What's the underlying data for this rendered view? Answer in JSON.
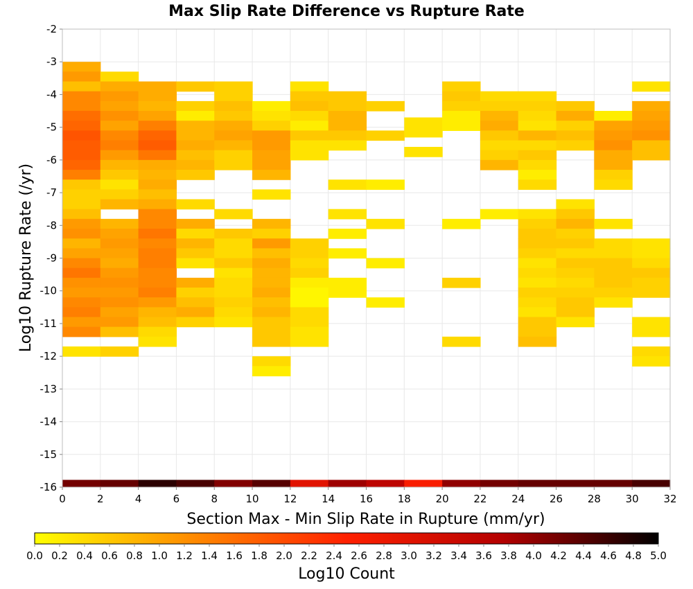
{
  "chart_data": {
    "type": "heatmap",
    "title": "Max Slip Rate Difference vs Rupture Rate",
    "xlabel": "Section Max - Min Slip Rate in Rupture (mm/yr)",
    "ylabel": "Log10 Rupture Rate (/yr)",
    "xlim": [
      0,
      32
    ],
    "ylim": [
      -16,
      -2
    ],
    "x_ticks": [
      0,
      2,
      4,
      6,
      8,
      10,
      12,
      14,
      16,
      18,
      20,
      22,
      24,
      26,
      28,
      30,
      32
    ],
    "y_ticks": [
      -16,
      -15,
      -14,
      -13,
      -12,
      -11,
      -10,
      -9,
      -8,
      -7,
      -6,
      -5,
      -4,
      -3,
      -2
    ],
    "x_bin_width": 2,
    "y_bin_height": 0.3,
    "grid": true,
    "colorbar": {
      "label": "Log10 Count",
      "min": 0.0,
      "max": 5.0,
      "ticks": [
        "0.0",
        "0.2",
        "0.4",
        "0.6",
        "0.8",
        "1.0",
        "1.2",
        "1.4",
        "1.6",
        "1.8",
        "2.0",
        "2.2",
        "2.4",
        "2.6",
        "2.8",
        "3.0",
        "3.2",
        "3.4",
        "3.6",
        "3.8",
        "4.0",
        "4.2",
        "4.4",
        "4.6",
        "4.8",
        "5.0"
      ],
      "colors": [
        "#ffff00",
        "#ff8c00",
        "#ff2000",
        "#b40000",
        "#000000"
      ]
    },
    "columns": [
      {
        "x_start": 0,
        "y_top": -3.0,
        "values": [
          0.9,
          1.1,
          0.7,
          1.3,
          1.3,
          1.6,
          1.7,
          1.9,
          1.8,
          1.8,
          1.7,
          1.4,
          0.6,
          0.5,
          0.5,
          0.7,
          1.1,
          1.2,
          0.8,
          1.0,
          1.3,
          1.5,
          1.2,
          1.1,
          1.3,
          1.4,
          1.1,
          1.3,
          null,
          0.3
        ],
        "baseline": 4.2
      },
      {
        "x_start": 2,
        "y_top": -3.3,
        "values": [
          0.4,
          0.9,
          1.1,
          1.0,
          1.2,
          1.0,
          1.3,
          1.4,
          1.1,
          0.8,
          0.6,
          0.3,
          0.5,
          0.8,
          null,
          0.8,
          1.0,
          1.1,
          1.0,
          0.9,
          1.1,
          1.2,
          1.1,
          1.2,
          1.0,
          1.1,
          0.7,
          null,
          0.5
        ],
        "baseline": 4.3
      },
      {
        "x_start": 4,
        "y_top": -3.6,
        "values": [
          0.9,
          0.9,
          0.8,
          1.0,
          1.4,
          1.7,
          1.8,
          1.5,
          0.9,
          0.8,
          0.9,
          0.7,
          0.9,
          1.3,
          1.3,
          1.5,
          1.3,
          1.4,
          1.4,
          1.3,
          1.3,
          1.4,
          1.1,
          0.8,
          0.7,
          0.4,
          0.3
        ],
        "baseline": 4.7
      },
      {
        "x_start": 6,
        "y_top": -3.6,
        "values": [
          0.6,
          null,
          0.5,
          0.2,
          0.8,
          0.8,
          0.9,
          0.7,
          0.8,
          0.6,
          null,
          null,
          0.4,
          null,
          0.9,
          0.4,
          0.8,
          0.6,
          0.3,
          null,
          0.9,
          0.5,
          0.7,
          0.9,
          0.5
        ],
        "baseline": 4.5
      },
      {
        "x_start": 8,
        "y_top": -3.6,
        "values": [
          0.5,
          0.5,
          0.7,
          0.6,
          0.9,
          1.0,
          0.8,
          0.5,
          0.5,
          null,
          null,
          null,
          null,
          0.4,
          null,
          0.6,
          0.4,
          0.4,
          0.6,
          0.3,
          0.4,
          0.4,
          0.5,
          0.4,
          0.3
        ],
        "baseline": 4.1
      },
      {
        "x_start": 10,
        "y_top": -4.2,
        "values": [
          0.2,
          0.3,
          0.5,
          1.1,
          1.1,
          1.0,
          1.0,
          0.8,
          null,
          0.3,
          null,
          null,
          0.8,
          0.5,
          1.1,
          0.7,
          0.9,
          0.8,
          0.8,
          0.9,
          0.7,
          0.8,
          0.6,
          0.6,
          0.6,
          null,
          0.4,
          0.2
        ],
        "baseline": 4.4
      },
      {
        "x_start": 12,
        "y_top": -3.6,
        "values": [
          0.3,
          0.6,
          0.7,
          0.4,
          0.2,
          0.6,
          0.3,
          0.3,
          null,
          null,
          null,
          null,
          null,
          null,
          null,
          null,
          0.5,
          0.5,
          0.4,
          0.5,
          0.2,
          0.1,
          0.1,
          0.4,
          0.4,
          0.3,
          0.3
        ],
        "baseline": 3.0
      },
      {
        "x_start": 14,
        "y_top": -3.9,
        "values": [
          0.6,
          0.6,
          0.8,
          0.8,
          0.6,
          0.3,
          null,
          null,
          null,
          0.3,
          null,
          null,
          0.3,
          null,
          0.2,
          null,
          0.2,
          null,
          null,
          0.2,
          0.2
        ],
        "baseline": 3.9
      },
      {
        "x_start": 16,
        "y_top": -4.2,
        "values": [
          0.5,
          null,
          null,
          0.5,
          null,
          null,
          null,
          null,
          0.2,
          null,
          null,
          null,
          0.3,
          null,
          null,
          null,
          0.2,
          null,
          null,
          null,
          0.2
        ],
        "baseline": 3.6
      },
      {
        "x_start": 18,
        "y_top": -4.7,
        "values": [
          0.3,
          0.3,
          null,
          0.3
        ],
        "baseline": 2.6
      },
      {
        "x_start": 20,
        "y_top": -3.6,
        "values": [
          0.5,
          0.6,
          0.5,
          0.2,
          0.2,
          null,
          null,
          null,
          null,
          null,
          null,
          null,
          null,
          null,
          0.2,
          null,
          null,
          null,
          null,
          null,
          0.5,
          null,
          null,
          null,
          null,
          null,
          0.4
        ],
        "baseline": 4.0
      },
      {
        "x_start": 22,
        "y_top": -3.9,
        "values": [
          0.4,
          0.5,
          0.8,
          0.9,
          0.6,
          0.4,
          0.5,
          0.8,
          null,
          null,
          null,
          null,
          0.2
        ],
        "baseline": 4.2
      },
      {
        "x_start": 24,
        "y_top": -3.9,
        "values": [
          0.4,
          0.5,
          0.4,
          0.3,
          0.8,
          0.4,
          0.6,
          0.4,
          0.2,
          0.4,
          null,
          null,
          0.3,
          0.5,
          0.6,
          0.6,
          0.5,
          0.3,
          0.4,
          0.3,
          0.5,
          0.4,
          0.3,
          0.6,
          0.6,
          0.7
        ],
        "baseline": 4.3
      },
      {
        "x_start": 26,
        "y_top": -4.2,
        "values": [
          0.6,
          0.9,
          0.5,
          0.7,
          0.5,
          null,
          null,
          null,
          null,
          null,
          0.3,
          0.6,
          0.8,
          0.5,
          0.6,
          0.4,
          0.6,
          0.5,
          0.4,
          0.5,
          0.6,
          0.6,
          0.3
        ],
        "baseline": 4.3
      },
      {
        "x_start": 28,
        "y_top": -4.5,
        "values": [
          0.2,
          1.0,
          1.1,
          1.2,
          0.9,
          0.9,
          0.5,
          0.4,
          null,
          null,
          null,
          0.3,
          null,
          0.4,
          0.4,
          0.6,
          0.6,
          0.6,
          0.5,
          0.3
        ],
        "baseline": 4.3
      },
      {
        "x_start": 30,
        "y_top": -3.6,
        "values": [
          0.3,
          null,
          0.9,
          1.0,
          1.1,
          1.2,
          0.7,
          0.7,
          null,
          null,
          null,
          null,
          null,
          null,
          null,
          null,
          0.3,
          0.3,
          0.4,
          0.6,
          0.5,
          0.5,
          null,
          null,
          0.3,
          0.3,
          null,
          0.4,
          0.3
        ],
        "baseline": 4.5
      }
    ]
  }
}
